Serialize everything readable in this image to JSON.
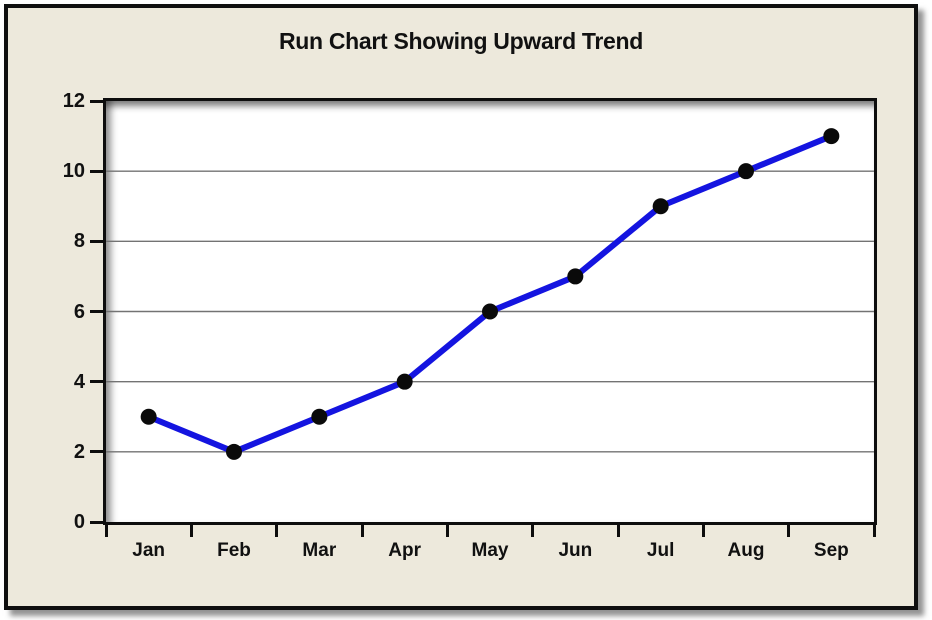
{
  "chart_data": {
    "type": "line",
    "title": "Run Chart Showing Upward Trend",
    "categories": [
      "Jan",
      "Feb",
      "Mar",
      "Apr",
      "May",
      "Jun",
      "Jul",
      "Aug",
      "Sep"
    ],
    "values": [
      3,
      2,
      3,
      4,
      6,
      7,
      9,
      10,
      11
    ],
    "xlabel": "",
    "ylabel": "",
    "ylim": [
      0,
      12
    ],
    "yticks": [
      0,
      2,
      4,
      6,
      8,
      10,
      12
    ],
    "grid": "horizontal",
    "legend": "none",
    "marker": "circle",
    "colors": {
      "line": "#1414E0",
      "marker": "#0A0A0A",
      "gridline": "#737373",
      "plot_border": "#0D0D0D",
      "plot_background": "#FFFFFF",
      "card_background": "#EDE9DC",
      "card_border": "#0F0F0F",
      "page_background": "#FFFFFF",
      "title_text": "#111111"
    }
  }
}
